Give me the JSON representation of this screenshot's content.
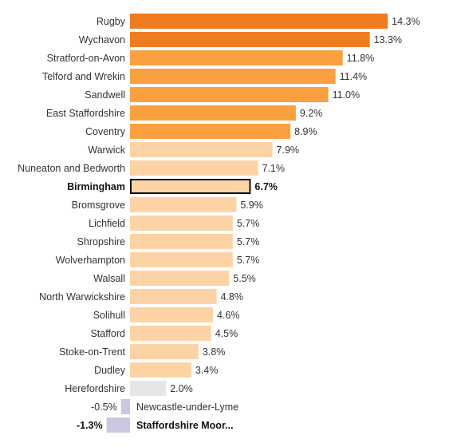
{
  "chart_data": {
    "type": "bar",
    "orientation": "horizontal",
    "grid": false,
    "categories": [
      "Rugby",
      "Wychavon",
      "Stratford-on-Avon",
      "Telford and Wrekin",
      "Sandwell",
      "East Staffordshire",
      "Coventry",
      "Warwick",
      "Nuneaton and Bedworth",
      "Birmingham",
      "Bromsgrove",
      "Lichfield",
      "Shropshire",
      "Wolverhampton",
      "Walsall",
      "North Warwickshire",
      "Solihull",
      "Stafford",
      "Stoke-on-Trent",
      "Dudley",
      "Herefordshire",
      "Newcastle-under-Lyme",
      "Staffordshire Moor..."
    ],
    "values": [
      14.3,
      13.3,
      11.8,
      11.4,
      11.0,
      9.2,
      8.9,
      7.9,
      7.1,
      6.7,
      5.9,
      5.7,
      5.7,
      5.7,
      5.5,
      4.8,
      4.6,
      4.5,
      3.8,
      3.4,
      2.0,
      -0.5,
      -1.3
    ],
    "value_labels": [
      "14.3%",
      "13.3%",
      "11.8%",
      "11.4%",
      "11.0%",
      "9.2%",
      "8.9%",
      "7.9%",
      "7.1%",
      "6.7%",
      "5.9%",
      "5.7%",
      "5.7%",
      "5.7%",
      "5.5%",
      "4.8%",
      "4.6%",
      "4.5%",
      "3.8%",
      "3.4%",
      "2.0%",
      "-0.5%",
      "-1.3%"
    ],
    "tiers": [
      "dark",
      "dark",
      "mid",
      "mid",
      "mid",
      "mid",
      "mid",
      "light",
      "light",
      "highlight",
      "light",
      "light",
      "light",
      "light",
      "light",
      "light",
      "light",
      "light",
      "light",
      "light",
      "grey",
      "neg",
      "neg"
    ],
    "bold": [
      false,
      false,
      false,
      false,
      false,
      false,
      false,
      false,
      false,
      true,
      false,
      false,
      false,
      false,
      false,
      false,
      false,
      false,
      false,
      false,
      false,
      false,
      true
    ],
    "colors": {
      "dark": "#F07C22",
      "mid": "#FBA040",
      "light": "#FDD3A6",
      "grey": "#E6E6E6",
      "neg": "#C9C8E0",
      "highlight_fill": "#FDD3A6",
      "highlight_stroke": "#111111",
      "label": "#333333"
    }
  }
}
